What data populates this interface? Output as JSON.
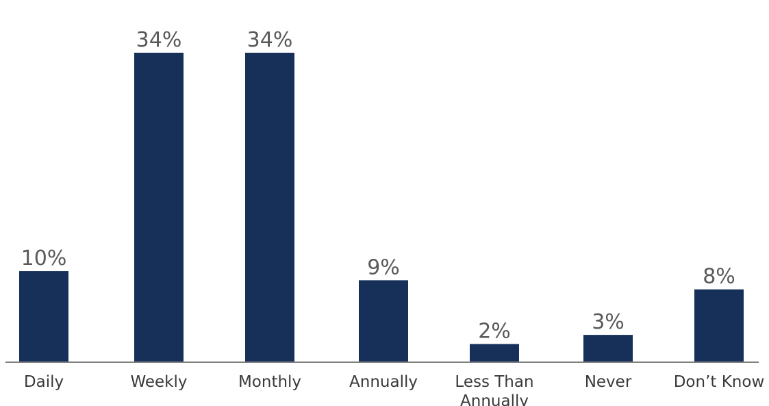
{
  "chart_data": {
    "type": "bar",
    "categories": [
      "Daily",
      "Weekly",
      "Monthly",
      "Annually",
      "Less Than Annually",
      "Never",
      "Don’t Know"
    ],
    "values": [
      10,
      34,
      34,
      9,
      2,
      3,
      8
    ],
    "value_labels": [
      "10%",
      "34%",
      "34%",
      "9%",
      "2%",
      "3%",
      "8%"
    ],
    "title": "",
    "xlabel": "",
    "ylabel": "",
    "ylim": [
      0,
      34
    ],
    "grid": false,
    "legend": "none",
    "bar_color": "#17305a",
    "axis_color": "#808080"
  }
}
